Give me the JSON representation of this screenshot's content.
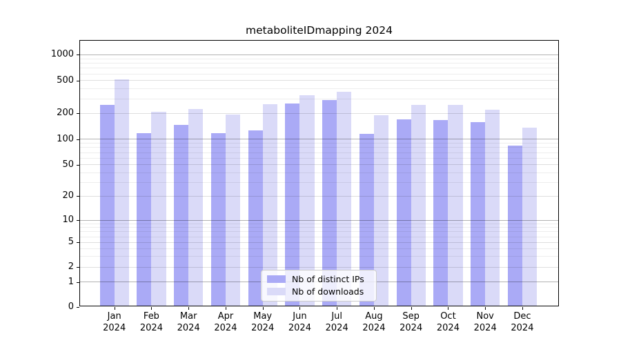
{
  "chart_data": {
    "type": "bar",
    "title": "metaboliteIDmapping 2024",
    "categories": [
      "Jan 2024",
      "Feb 2024",
      "Mar 2024",
      "Apr 2024",
      "May 2024",
      "Jun 2024",
      "Jul 2024",
      "Aug 2024",
      "Sep 2024",
      "Oct 2024",
      "Nov 2024",
      "Dec 2024"
    ],
    "series": [
      {
        "name": "Nb of distinct IPs",
        "color": "#aaaaf6",
        "values": [
          250,
          118,
          147,
          118,
          125,
          262,
          290,
          114,
          168,
          165,
          158,
          83
        ]
      },
      {
        "name": "Nb of downloads",
        "color": "#dadaf8",
        "values": [
          510,
          207,
          226,
          191,
          256,
          332,
          361,
          188,
          253,
          253,
          221,
          135
        ]
      }
    ],
    "xlabel": "",
    "ylabel": "",
    "yscale": "log-like (compressed near zero)",
    "yticks": [
      1000,
      500,
      200,
      100,
      50,
      20,
      10,
      5,
      2,
      1,
      0
    ],
    "ylim": [
      0,
      1100
    ],
    "grid": "on",
    "legend_position": "lower center inside plot"
  }
}
